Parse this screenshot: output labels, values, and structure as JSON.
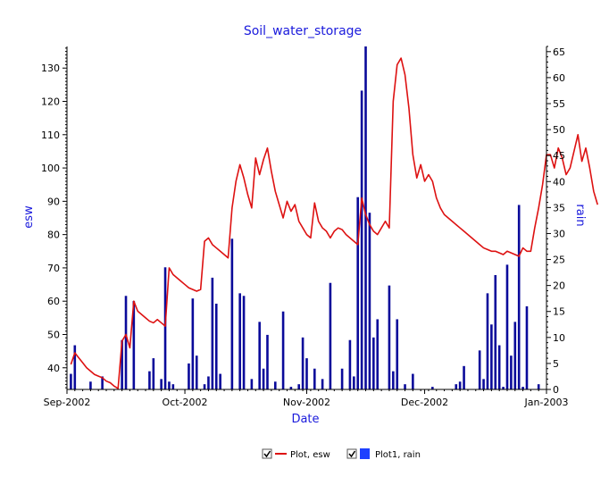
{
  "chart_data": {
    "type": "bar+line",
    "title": "Soil_water_storage",
    "xlabel": "Date",
    "ylabel_left": "esw",
    "ylabel_right": "rain",
    "ylim_left": [
      33.5,
      136.5
    ],
    "ylim_right": [
      0,
      66
    ],
    "left_ticks": [
      40,
      50,
      60,
      70,
      80,
      90,
      100,
      110,
      120,
      130
    ],
    "right_ticks": [
      0,
      5,
      10,
      15,
      20,
      25,
      30,
      35,
      40,
      45,
      50,
      55,
      60,
      65
    ],
    "x_ticks": [
      {
        "day": 0,
        "label": "Sep-2002"
      },
      {
        "day": 30,
        "label": "Oct-2002"
      },
      {
        "day": 61,
        "label": "Nov-2002"
      },
      {
        "day": 91,
        "label": "Dec-2002"
      },
      {
        "day": 122,
        "label": "Jan-2003"
      }
    ],
    "x_range_days": [
      0,
      122
    ],
    "legend": {
      "placement": "bottom",
      "entries": [
        {
          "label": "Plot, esw",
          "checked": true
        },
        {
          "label": "Plot1, rain",
          "checked": true
        }
      ]
    },
    "colors": {
      "esw": "#dd1111",
      "rain": "#0a0a9a",
      "legend_rain": "#1e40ff",
      "text": "#1a1adc"
    },
    "series": [
      {
        "name": "Plot, esw",
        "type": "line",
        "axis": "left",
        "points": [
          [
            1,
            41
          ],
          [
            2,
            44.5
          ],
          [
            3,
            43
          ],
          [
            4,
            41.5
          ],
          [
            5,
            40
          ],
          [
            6,
            39
          ],
          [
            7,
            38
          ],
          [
            8,
            37.5
          ],
          [
            9,
            37
          ],
          [
            10,
            36
          ],
          [
            11,
            35.5
          ],
          [
            12,
            34.5
          ],
          [
            13,
            33.8
          ],
          [
            14,
            48
          ],
          [
            15,
            50
          ],
          [
            16,
            46
          ],
          [
            17,
            60
          ],
          [
            18,
            57
          ],
          [
            19,
            56
          ],
          [
            20,
            55
          ],
          [
            21,
            54
          ],
          [
            22,
            53.5
          ],
          [
            23,
            54.5
          ],
          [
            24,
            53.5
          ],
          [
            25,
            52.5
          ],
          [
            26,
            70
          ],
          [
            27,
            68
          ],
          [
            28,
            67
          ],
          [
            29,
            66
          ],
          [
            30,
            65
          ],
          [
            31,
            64
          ],
          [
            32,
            63.5
          ],
          [
            33,
            63
          ],
          [
            34,
            63.5
          ],
          [
            35,
            78
          ],
          [
            36,
            79
          ],
          [
            37,
            77
          ],
          [
            38,
            76
          ],
          [
            39,
            75
          ],
          [
            40,
            74
          ],
          [
            41,
            73
          ],
          [
            42,
            88
          ],
          [
            43,
            96
          ],
          [
            44,
            101
          ],
          [
            45,
            97
          ],
          [
            46,
            92
          ],
          [
            47,
            88
          ],
          [
            48,
            103
          ],
          [
            49,
            98
          ],
          [
            50,
            102.5
          ],
          [
            51,
            106
          ],
          [
            52,
            99
          ],
          [
            53,
            93
          ],
          [
            54,
            89
          ],
          [
            55,
            85
          ],
          [
            56,
            90
          ],
          [
            57,
            87
          ],
          [
            58,
            89
          ],
          [
            59,
            84
          ],
          [
            60,
            82
          ],
          [
            61,
            80
          ],
          [
            62,
            79
          ],
          [
            63,
            89.5
          ],
          [
            64,
            84
          ],
          [
            65,
            82
          ],
          [
            66,
            81
          ],
          [
            67,
            79
          ],
          [
            68,
            81
          ],
          [
            69,
            82
          ],
          [
            70,
            81.5
          ],
          [
            71,
            80
          ],
          [
            72,
            79
          ],
          [
            73,
            78
          ],
          [
            74,
            77
          ],
          [
            75,
            91
          ],
          [
            76,
            86
          ],
          [
            77,
            83
          ],
          [
            78,
            81
          ],
          [
            79,
            80
          ],
          [
            80,
            82
          ],
          [
            81,
            84
          ],
          [
            82,
            82
          ],
          [
            83,
            120
          ],
          [
            84,
            131
          ],
          [
            85,
            133
          ],
          [
            86,
            128
          ],
          [
            87,
            118
          ],
          [
            88,
            104
          ],
          [
            89,
            97
          ],
          [
            90,
            101
          ],
          [
            91,
            96
          ],
          [
            92,
            98
          ],
          [
            93,
            96
          ],
          [
            94,
            91
          ],
          [
            95,
            88
          ],
          [
            96,
            86
          ],
          [
            97,
            85
          ],
          [
            98,
            84
          ],
          [
            99,
            83
          ],
          [
            100,
            82
          ],
          [
            101,
            81
          ],
          [
            102,
            80
          ],
          [
            103,
            79
          ],
          [
            104,
            78
          ],
          [
            105,
            77
          ],
          [
            106,
            76
          ],
          [
            107,
            75.5
          ],
          [
            108,
            75
          ],
          [
            109,
            75
          ],
          [
            110,
            74.5
          ],
          [
            111,
            74
          ],
          [
            112,
            75
          ],
          [
            113,
            74.5
          ],
          [
            114,
            74
          ],
          [
            115,
            73.5
          ],
          [
            116,
            76
          ],
          [
            117,
            75
          ],
          [
            118,
            75
          ],
          [
            119,
            82
          ],
          [
            120,
            88
          ],
          [
            121,
            95
          ],
          [
            122,
            104
          ],
          [
            123,
            104
          ],
          [
            124,
            100
          ],
          [
            125,
            106
          ],
          [
            126,
            103
          ],
          [
            127,
            98
          ],
          [
            128,
            100
          ],
          [
            129,
            105
          ],
          [
            130,
            110
          ],
          [
            131,
            102
          ],
          [
            132,
            106
          ],
          [
            133,
            100
          ],
          [
            134,
            93
          ],
          [
            135,
            89
          ]
        ]
      },
      {
        "name": "Plot1, rain",
        "type": "bar",
        "axis": "right",
        "points": [
          [
            1,
            3
          ],
          [
            2,
            8.5
          ],
          [
            6,
            1.5
          ],
          [
            9,
            2.5
          ],
          [
            14,
            9.5
          ],
          [
            15,
            18
          ],
          [
            17,
            17
          ],
          [
            21,
            3.5
          ],
          [
            22,
            6
          ],
          [
            24,
            2
          ],
          [
            25,
            23.5
          ],
          [
            26,
            1.5
          ],
          [
            27,
            1
          ],
          [
            31,
            5
          ],
          [
            32,
            17.5
          ],
          [
            33,
            6.5
          ],
          [
            35,
            1
          ],
          [
            36,
            2.5
          ],
          [
            37,
            21.5
          ],
          [
            38,
            16.5
          ],
          [
            39,
            3
          ],
          [
            42,
            29
          ],
          [
            44,
            18.5
          ],
          [
            45,
            18
          ],
          [
            47,
            2
          ],
          [
            49,
            13
          ],
          [
            50,
            4
          ],
          [
            51,
            10.5
          ],
          [
            53,
            1.5
          ],
          [
            55,
            15
          ],
          [
            57,
            0.5
          ],
          [
            59,
            1
          ],
          [
            60,
            10
          ],
          [
            61,
            6
          ],
          [
            63,
            4
          ],
          [
            65,
            2
          ],
          [
            67,
            20.5
          ],
          [
            70,
            4
          ],
          [
            72,
            9.5
          ],
          [
            73,
            2.5
          ],
          [
            74,
            37
          ],
          [
            75,
            57.5
          ],
          [
            76,
            66
          ],
          [
            77,
            34
          ],
          [
            78,
            10
          ],
          [
            79,
            13.5
          ],
          [
            82,
            20
          ],
          [
            83,
            3.5
          ],
          [
            84,
            13.5
          ],
          [
            86,
            1
          ],
          [
            88,
            3
          ],
          [
            93,
            0.5
          ],
          [
            99,
            1
          ],
          [
            100,
            1.5
          ],
          [
            101,
            4.5
          ],
          [
            105,
            7.5
          ],
          [
            106,
            2
          ],
          [
            107,
            18.5
          ],
          [
            108,
            12.5
          ],
          [
            109,
            22
          ],
          [
            110,
            8.5
          ],
          [
            111,
            0.5
          ],
          [
            112,
            24
          ],
          [
            113,
            6.5
          ],
          [
            114,
            13
          ],
          [
            115,
            35.5
          ],
          [
            116,
            0.5
          ],
          [
            117,
            16
          ],
          [
            120,
            1
          ]
        ]
      }
    ]
  }
}
